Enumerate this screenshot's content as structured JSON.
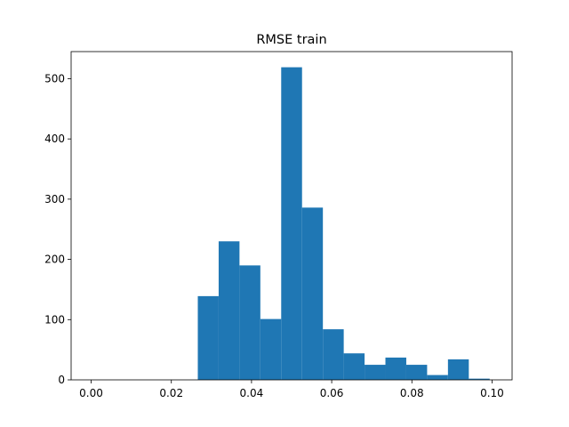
{
  "chart_data": {
    "type": "bar",
    "title": "RMSE train",
    "xlabel": "",
    "ylabel": "",
    "xlim": [
      -0.005,
      0.105
    ],
    "ylim": [
      0,
      545
    ],
    "bin_edges": [
      0.0266,
      0.0318,
      0.037,
      0.0422,
      0.0474,
      0.0526,
      0.0578,
      0.063,
      0.0682,
      0.0734,
      0.0786,
      0.0838,
      0.089,
      0.0942,
      0.0994
    ],
    "counts": [
      139,
      230,
      190,
      101,
      519,
      286,
      84,
      44,
      25,
      37,
      25,
      8,
      34,
      2
    ],
    "x_ticks": [
      0.0,
      0.02,
      0.04,
      0.06,
      0.08,
      0.1
    ],
    "x_tick_labels": [
      "0.00",
      "0.02",
      "0.04",
      "0.06",
      "0.08",
      "0.10"
    ],
    "y_ticks": [
      0,
      100,
      200,
      300,
      400,
      500
    ],
    "y_tick_labels": [
      "0",
      "100",
      "200",
      "300",
      "400",
      "500"
    ],
    "grid": false,
    "bar_color": "#1f77b4"
  }
}
